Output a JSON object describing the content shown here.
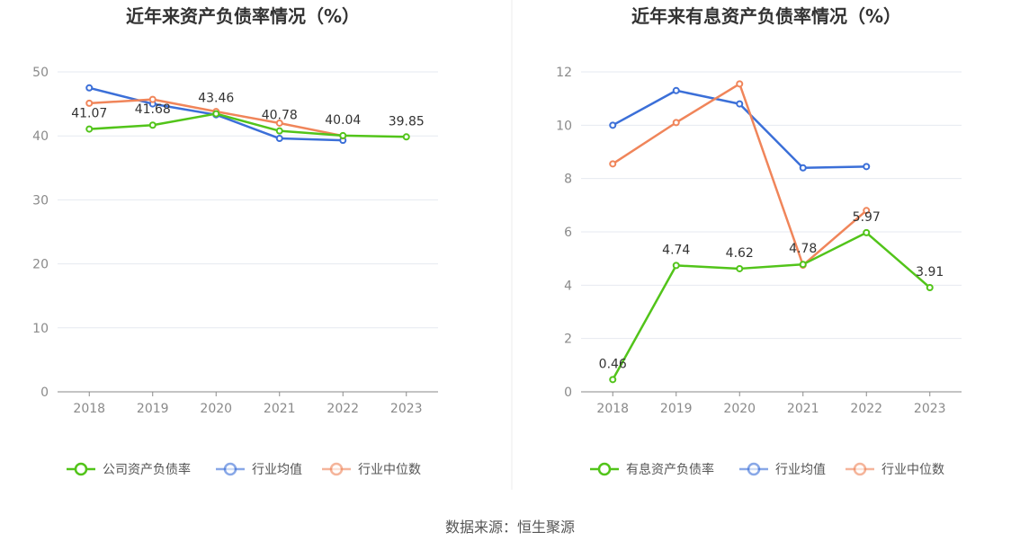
{
  "source": "数据来源：恒生聚源",
  "colors": {
    "green": "#52c41a",
    "blue": "#3b6fd8",
    "orange": "#f0855a",
    "grid": "#e6e9f0",
    "axis": "#8a8a8a"
  },
  "chart_data": [
    {
      "type": "line",
      "title": "近年来资产负债率情况（%）",
      "categories": [
        "2018",
        "2019",
        "2020",
        "2021",
        "2022",
        "2023"
      ],
      "ylim": [
        0,
        50
      ],
      "yticks": [
        0,
        10,
        20,
        30,
        40,
        50
      ],
      "grid": true,
      "legend_position": "bottom",
      "series": [
        {
          "name": "公司资产负债率",
          "color": "#52c41a",
          "labels": true,
          "values": [
            41.07,
            41.68,
            43.46,
            40.78,
            40.04,
            39.85
          ],
          "value_labels": [
            "41.07",
            "41.68",
            "43.46",
            "40.78",
            "40.04",
            "39.85"
          ]
        },
        {
          "name": "行业均值",
          "color": "#3b6fd8",
          "labels": false,
          "values": [
            47.5,
            45.0,
            43.3,
            39.6,
            39.3,
            null
          ]
        },
        {
          "name": "行业中位数",
          "color": "#f0855a",
          "labels": false,
          "values": [
            45.1,
            45.7,
            43.8,
            42.0,
            40.0,
            null
          ]
        }
      ]
    },
    {
      "type": "line",
      "title": "近年来有息资产负债率情况（%）",
      "categories": [
        "2018",
        "2019",
        "2020",
        "2021",
        "2022",
        "2023"
      ],
      "ylim": [
        0,
        12
      ],
      "yticks": [
        0,
        2,
        4,
        6,
        8,
        10,
        12
      ],
      "grid": true,
      "legend_position": "bottom",
      "series": [
        {
          "name": "有息资产负债率",
          "color": "#52c41a",
          "labels": true,
          "values": [
            0.46,
            4.74,
            4.62,
            4.78,
            5.97,
            3.91
          ],
          "value_labels": [
            "0.46",
            "4.74",
            "4.62",
            "4.78",
            "5.97",
            "3.91"
          ]
        },
        {
          "name": "行业均值",
          "color": "#3b6fd8",
          "labels": false,
          "values": [
            10.0,
            11.3,
            10.8,
            8.4,
            8.45,
            null
          ]
        },
        {
          "name": "行业中位数",
          "color": "#f0855a",
          "labels": false,
          "values": [
            8.55,
            10.1,
            11.55,
            4.75,
            6.8,
            null
          ]
        }
      ]
    }
  ]
}
